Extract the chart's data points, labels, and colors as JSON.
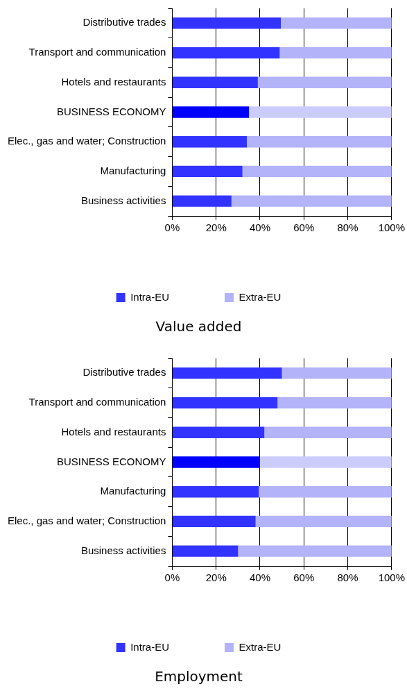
{
  "chart_data": [
    {
      "type": "bar",
      "orientation": "horizontal",
      "stacked": true,
      "title": "Value added",
      "categories": [
        "Distributive trades",
        "Transport and communication",
        "Hotels and restaurants",
        "BUSINESS ECONOMY",
        "Elec., gas and water; Construction",
        "Manufacturing",
        "Business activities"
      ],
      "series": [
        {
          "name": "Intra-EU",
          "color": "#3333ff",
          "colors": [
            "#3333ff",
            "#3333ff",
            "#3333ff",
            "#0000ff",
            "#3333ff",
            "#3333ff",
            "#3333ff"
          ],
          "values": [
            49.5,
            49,
            39,
            35,
            34,
            32,
            27
          ]
        },
        {
          "name": "Extra-EU",
          "color": "#b3b3f9",
          "colors": [
            "#b3b3f9",
            "#b3b3f9",
            "#b3b3f9",
            "#ccccfc",
            "#b3b3f9",
            "#b3b3f9",
            "#b3b3f9"
          ],
          "values": [
            50.5,
            51,
            61,
            65,
            66,
            68,
            73
          ]
        }
      ],
      "xlim": [
        0,
        100
      ],
      "xticks": [
        {
          "value": 0,
          "label": "0%"
        },
        {
          "value": 20,
          "label": "20%"
        },
        {
          "value": 40,
          "label": "40%"
        },
        {
          "value": 60,
          "label": "60%"
        },
        {
          "value": 80,
          "label": "80%"
        },
        {
          "value": 100,
          "label": "100%"
        }
      ],
      "grid": "x",
      "legend": "bottom"
    },
    {
      "type": "bar",
      "orientation": "horizontal",
      "stacked": true,
      "title": "Employment",
      "categories": [
        "Distributive trades",
        "Transport and communication",
        "Hotels and restaurants",
        "BUSINESS ECONOMY",
        "Manufacturing",
        "Elec., gas and water; Construction",
        "Business activities"
      ],
      "series": [
        {
          "name": "Intra-EU",
          "color": "#3333ff",
          "colors": [
            "#3333ff",
            "#3333ff",
            "#3333ff",
            "#0000ff",
            "#3333ff",
            "#3333ff",
            "#3333ff"
          ],
          "values": [
            50,
            48,
            42,
            40,
            39.5,
            38,
            30
          ]
        },
        {
          "name": "Extra-EU",
          "color": "#b3b3f9",
          "colors": [
            "#b3b3f9",
            "#b3b3f9",
            "#b3b3f9",
            "#ccccfc",
            "#b3b3f9",
            "#b3b3f9",
            "#b3b3f9"
          ],
          "values": [
            50,
            52,
            58,
            60,
            60.5,
            62,
            70
          ]
        }
      ],
      "xlim": [
        0,
        100
      ],
      "xticks": [
        {
          "value": 0,
          "label": "0%"
        },
        {
          "value": 20,
          "label": "20%"
        },
        {
          "value": 40,
          "label": "40%"
        },
        {
          "value": 60,
          "label": "60%"
        },
        {
          "value": 80,
          "label": "80%"
        },
        {
          "value": 100,
          "label": "100%"
        }
      ],
      "grid": "x",
      "legend": "bottom"
    }
  ]
}
